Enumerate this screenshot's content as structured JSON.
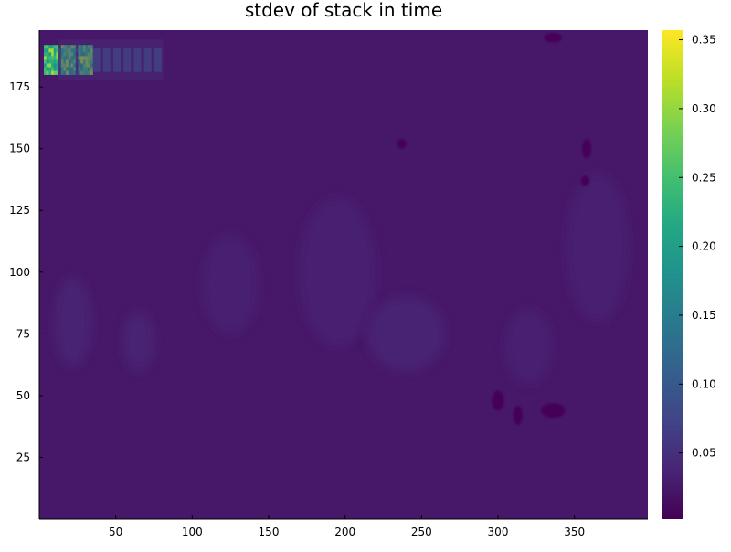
{
  "chart_data": {
    "type": "heatmap",
    "title": "stdev of stack in time",
    "xlabel": "",
    "ylabel": "",
    "xlim": [
      0,
      398
    ],
    "ylim": [
      0,
      198
    ],
    "x_ticks": [
      50,
      100,
      150,
      200,
      250,
      300,
      350
    ],
    "y_ticks": [
      25,
      50,
      75,
      100,
      125,
      150,
      175
    ],
    "colorbar": {
      "colormap": "viridis",
      "range": [
        0.002,
        0.357
      ],
      "ticks": [
        0.05,
        0.1,
        0.15,
        0.2,
        0.25,
        0.3,
        0.35
      ],
      "tick_labels": [
        "0.05",
        "0.10",
        "0.15",
        "0.20",
        "0.25",
        "0.30",
        "0.35"
      ]
    },
    "background_value": 0.025,
    "features": [
      {
        "kind": "bright-text-block",
        "x": [
          3,
          35
        ],
        "y": [
          180,
          192
        ],
        "value": 0.3
      },
      {
        "kind": "faint-text",
        "x": [
          35,
          80
        ],
        "y": [
          180,
          192
        ],
        "value": 0.08
      },
      {
        "kind": "blob",
        "cx": 22,
        "cy": 80,
        "rx": 12,
        "ry": 18,
        "value": 0.04
      },
      {
        "kind": "blob",
        "cx": 65,
        "cy": 72,
        "rx": 10,
        "ry": 12,
        "value": 0.04
      },
      {
        "kind": "blob",
        "cx": 125,
        "cy": 95,
        "rx": 18,
        "ry": 20,
        "value": 0.035
      },
      {
        "kind": "blob",
        "cx": 195,
        "cy": 100,
        "rx": 25,
        "ry": 30,
        "value": 0.035
      },
      {
        "kind": "blob",
        "cx": 240,
        "cy": 75,
        "rx": 25,
        "ry": 15,
        "value": 0.04
      },
      {
        "kind": "blob",
        "cx": 320,
        "cy": 70,
        "rx": 15,
        "ry": 15,
        "value": 0.035
      },
      {
        "kind": "blob",
        "cx": 365,
        "cy": 110,
        "rx": 20,
        "ry": 30,
        "value": 0.035
      },
      {
        "kind": "dark-spot",
        "cx": 336,
        "cy": 44,
        "rx": 8,
        "ry": 3,
        "value": 0.005
      },
      {
        "kind": "dark-spot",
        "cx": 300,
        "cy": 48,
        "rx": 4,
        "ry": 4,
        "value": 0.005
      },
      {
        "kind": "dark-spot",
        "cx": 313,
        "cy": 42,
        "rx": 3,
        "ry": 4,
        "value": 0.005
      },
      {
        "kind": "dark-spot",
        "cx": 358,
        "cy": 150,
        "rx": 3,
        "ry": 4,
        "value": 0.005
      },
      {
        "kind": "dark-spot",
        "cx": 237,
        "cy": 152,
        "rx": 3,
        "ry": 2,
        "value": 0.005
      },
      {
        "kind": "dark-spot",
        "cx": 357,
        "cy": 137,
        "rx": 3,
        "ry": 2,
        "value": 0.005
      },
      {
        "kind": "dark-spot",
        "cx": 336,
        "cy": 195,
        "rx": 6,
        "ry": 2,
        "value": 0.005
      }
    ]
  }
}
